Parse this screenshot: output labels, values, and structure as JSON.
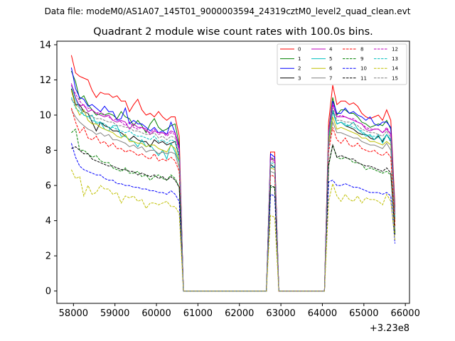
{
  "chart_data": {
    "type": "line",
    "suptitle": "Data file: modeM0/AS1A07_145T01_9000003594_24319cztM0_level2_quad_clean.evt",
    "title": "Quadrant 2 module wise count rates with 100.0s bins.",
    "offset_label": "+3.23e8",
    "xlabel": "",
    "ylabel": "",
    "xlim": [
      57600,
      66100
    ],
    "ylim": [
      -0.7,
      14.2
    ],
    "xticks": [
      58000,
      59000,
      60000,
      61000,
      62000,
      63000,
      64000,
      65000,
      66000
    ],
    "yticks": [
      0,
      2,
      4,
      6,
      8,
      10,
      12,
      14
    ],
    "grid": false,
    "legend_position": "top-right",
    "x": [
      57950,
      58050,
      58150,
      58250,
      58350,
      58450,
      58550,
      58650,
      58750,
      58850,
      58950,
      59050,
      59150,
      59250,
      59350,
      59450,
      59550,
      59650,
      59750,
      59850,
      59950,
      60050,
      60150,
      60250,
      60350,
      60450,
      60550,
      60650,
      60750,
      62650,
      62750,
      62850,
      62950,
      63050,
      64050,
      64150,
      64250,
      64350,
      64450,
      64550,
      64650,
      64750,
      64850,
      64950,
      65050,
      65150,
      65250,
      65350,
      65450,
      65550,
      65650,
      65750
    ],
    "series": [
      {
        "name": "0",
        "color": "#ff0000",
        "dash": "solid",
        "values": [
          13.4,
          12.4,
          12.2,
          12.1,
          12.0,
          11.4,
          11.0,
          11.3,
          11.2,
          11.2,
          11.0,
          11.1,
          10.8,
          10.8,
          10.2,
          10.6,
          10.9,
          10.3,
          10.0,
          10.1,
          9.9,
          10.2,
          9.9,
          9.7,
          9.9,
          9.9,
          8.8,
          0.0,
          0.0,
          0.0,
          7.9,
          7.9,
          0.0,
          0.0,
          0.0,
          9.6,
          11.7,
          10.6,
          10.8,
          10.8,
          10.6,
          10.7,
          10.5,
          10.1,
          9.9,
          9.8,
          9.9,
          10.0,
          9.7,
          10.3,
          9.7,
          4.8
        ]
      },
      {
        "name": "1",
        "color": "#008000",
        "dash": "solid",
        "values": [
          12.5,
          11.9,
          10.9,
          11.1,
          10.6,
          10.3,
          10.0,
          10.1,
          10.0,
          10.1,
          10.0,
          9.8,
          10.2,
          9.9,
          9.8,
          9.4,
          9.7,
          9.4,
          9.0,
          9.5,
          9.8,
          9.3,
          9.1,
          9.2,
          9.4,
          9.5,
          8.3,
          0.0,
          0.0,
          0.0,
          7.5,
          7.5,
          0.0,
          0.0,
          0.0,
          9.1,
          11.0,
          10.0,
          10.3,
          10.3,
          10.1,
          10.1,
          9.9,
          9.6,
          9.5,
          9.3,
          9.4,
          9.5,
          9.4,
          9.7,
          9.2,
          4.5
        ]
      },
      {
        "name": "2",
        "color": "#0000ff",
        "dash": "solid",
        "values": [
          12.7,
          11.5,
          11.0,
          10.9,
          10.5,
          10.6,
          10.4,
          10.2,
          10.5,
          10.2,
          10.2,
          9.7,
          9.8,
          10.4,
          9.5,
          9.7,
          9.5,
          9.5,
          9.3,
          9.1,
          9.3,
          9.0,
          9.1,
          8.9,
          9.6,
          9.0,
          8.2,
          0.0,
          0.0,
          0.0,
          7.8,
          7.6,
          0.0,
          0.0,
          0.0,
          9.0,
          10.8,
          10.1,
          10.1,
          10.4,
          10.1,
          10.2,
          10.0,
          9.9,
          9.7,
          9.9,
          9.5,
          9.4,
          9.6,
          9.6,
          9.3,
          4.4
        ]
      },
      {
        "name": "3",
        "color": "#000000",
        "dash": "solid",
        "values": [
          11.5,
          10.6,
          10.6,
          10.2,
          10.1,
          9.6,
          9.1,
          9.6,
          9.4,
          9.3,
          9.1,
          9.1,
          9.0,
          8.8,
          8.6,
          8.8,
          8.6,
          8.5,
          8.5,
          8.2,
          8.6,
          8.4,
          8.5,
          8.3,
          8.4,
          8.5,
          7.6,
          0.0,
          0.0,
          0.0,
          7.2,
          7.0,
          0.0,
          0.0,
          0.0,
          8.7,
          10.2,
          9.5,
          9.6,
          9.4,
          9.3,
          9.2,
          9.0,
          8.9,
          8.9,
          8.7,
          8.6,
          8.8,
          8.5,
          8.9,
          8.5,
          4.1
        ]
      },
      {
        "name": "4",
        "color": "#bf00bf",
        "dash": "solid",
        "values": [
          11.8,
          11.0,
          10.5,
          10.6,
          10.2,
          10.3,
          10.1,
          10.0,
          9.9,
          10.0,
          9.7,
          9.6,
          9.7,
          9.6,
          9.2,
          9.5,
          9.3,
          9.3,
          9.2,
          8.9,
          9.1,
          9.0,
          9.0,
          8.9,
          9.1,
          9.0,
          8.1,
          0.0,
          0.0,
          0.0,
          7.5,
          7.4,
          0.0,
          0.0,
          0.0,
          9.0,
          10.6,
          9.9,
          9.9,
          9.9,
          9.8,
          9.7,
          9.6,
          9.5,
          9.2,
          9.1,
          9.2,
          9.2,
          9.0,
          9.2,
          8.9,
          4.4
        ]
      },
      {
        "name": "5",
        "color": "#00bfbf",
        "dash": "solid",
        "values": [
          11.7,
          10.9,
          10.4,
          10.0,
          9.9,
          10.0,
          9.5,
          9.6,
          9.2,
          9.1,
          9.4,
          9.4,
          8.8,
          8.8,
          8.6,
          8.5,
          8.2,
          8.6,
          8.2,
          8.3,
          8.0,
          7.7,
          8.0,
          7.5,
          8.4,
          7.9,
          7.3,
          0.0,
          0.0,
          0.0,
          7.0,
          7.1,
          0.0,
          0.0,
          0.0,
          8.6,
          10.3,
          9.5,
          9.6,
          9.4,
          9.4,
          9.6,
          9.2,
          9.0,
          8.8,
          8.9,
          8.6,
          8.9,
          8.4,
          8.9,
          8.6,
          4.2
        ]
      },
      {
        "name": "6",
        "color": "#bfbf00",
        "dash": "solid",
        "values": [
          11.4,
          10.5,
          10.0,
          10.3,
          9.7,
          9.5,
          9.5,
          9.3,
          9.2,
          9.1,
          9.0,
          8.8,
          8.7,
          8.9,
          8.5,
          8.5,
          8.4,
          8.4,
          8.2,
          8.3,
          8.3,
          8.1,
          8.0,
          7.9,
          8.3,
          8.1,
          7.4,
          0.0,
          0.0,
          0.0,
          7.0,
          6.9,
          0.0,
          0.0,
          0.0,
          8.4,
          9.9,
          9.2,
          9.3,
          9.2,
          9.1,
          9.0,
          8.9,
          8.7,
          8.7,
          8.5,
          8.5,
          8.4,
          8.3,
          8.5,
          8.3,
          4.0
        ]
      },
      {
        "name": "7",
        "color": "#808080",
        "dash": "solid",
        "values": [
          10.3,
          9.9,
          9.6,
          9.4,
          9.2,
          9.1,
          8.9,
          9.0,
          8.8,
          8.9,
          8.6,
          8.6,
          8.5,
          8.4,
          8.2,
          8.3,
          8.1,
          8.2,
          7.9,
          8.0,
          8.0,
          7.8,
          7.9,
          7.8,
          7.9,
          7.8,
          7.0,
          0.0,
          0.0,
          0.0,
          6.8,
          6.7,
          0.0,
          0.0,
          0.0,
          8.2,
          9.6,
          9.0,
          9.0,
          8.9,
          8.8,
          8.7,
          8.7,
          8.5,
          8.4,
          8.3,
          8.3,
          8.2,
          8.1,
          8.4,
          8.0,
          3.9
        ]
      },
      {
        "name": "8",
        "color": "#ff0000",
        "dash": "dashed",
        "values": [
          10.4,
          9.6,
          9.0,
          9.3,
          8.7,
          8.6,
          8.8,
          8.4,
          8.5,
          8.2,
          8.4,
          8.1,
          8.1,
          7.9,
          8.0,
          7.9,
          7.7,
          7.8,
          7.6,
          7.5,
          7.8,
          7.4,
          7.5,
          7.4,
          7.6,
          7.4,
          6.8,
          0.0,
          0.0,
          0.0,
          6.6,
          6.5,
          0.0,
          0.0,
          0.0,
          7.9,
          9.3,
          8.6,
          8.4,
          8.7,
          8.3,
          8.2,
          8.4,
          8.1,
          8.0,
          7.9,
          8.0,
          7.8,
          7.7,
          7.9,
          7.6,
          3.7
        ]
      },
      {
        "name": "9",
        "color": "#008000",
        "dash": "dashed",
        "values": [
          9.0,
          9.2,
          8.0,
          8.0,
          7.8,
          7.6,
          7.7,
          7.4,
          7.3,
          7.3,
          7.0,
          6.9,
          6.8,
          7.0,
          6.7,
          6.7,
          6.8,
          6.5,
          6.6,
          6.3,
          6.5,
          6.6,
          6.4,
          6.3,
          6.6,
          6.4,
          5.9,
          0.0,
          0.0,
          0.0,
          5.9,
          5.9,
          0.0,
          0.0,
          0.0,
          7.1,
          8.3,
          7.6,
          7.5,
          7.6,
          7.5,
          7.3,
          7.3,
          7.2,
          6.9,
          7.0,
          6.9,
          6.8,
          6.7,
          6.8,
          6.6,
          3.3
        ]
      },
      {
        "name": "10",
        "color": "#0000ff",
        "dash": "dashed",
        "values": [
          8.4,
          7.6,
          7.1,
          6.9,
          6.8,
          6.7,
          6.6,
          6.6,
          6.4,
          6.3,
          6.3,
          6.1,
          6.1,
          6.0,
          6.0,
          5.9,
          5.9,
          5.8,
          5.8,
          5.7,
          5.7,
          5.6,
          5.6,
          5.5,
          5.7,
          5.5,
          5.1,
          0.0,
          0.0,
          0.0,
          5.5,
          5.4,
          0.0,
          0.0,
          0.0,
          6.2,
          6.3,
          6.0,
          6.0,
          6.1,
          6.0,
          5.9,
          5.9,
          5.8,
          5.7,
          5.6,
          5.6,
          5.6,
          5.5,
          5.6,
          5.4,
          2.7
        ]
      },
      {
        "name": "11",
        "color": "#000000",
        "dash": "dashed",
        "values": [
          8.1,
          8.2,
          8.0,
          7.8,
          7.8,
          7.5,
          7.4,
          7.3,
          7.2,
          7.1,
          7.1,
          7.0,
          6.9,
          6.9,
          6.8,
          6.8,
          6.6,
          6.7,
          6.6,
          6.5,
          6.6,
          6.4,
          6.5,
          6.3,
          6.5,
          6.3,
          5.9,
          0.0,
          0.0,
          0.0,
          6.0,
          5.9,
          0.0,
          0.0,
          0.0,
          7.2,
          8.3,
          7.6,
          7.7,
          7.6,
          7.5,
          7.5,
          7.3,
          7.2,
          7.1,
          7.1,
          7.0,
          6.9,
          6.8,
          7.0,
          6.7,
          3.2
        ]
      },
      {
        "name": "12",
        "color": "#bf00bf",
        "dash": "dashed",
        "values": [
          11.7,
          11.2,
          10.8,
          10.5,
          10.4,
          10.3,
          10.1,
          10.2,
          10.0,
          9.9,
          9.7,
          9.8,
          9.6,
          9.4,
          9.6,
          9.3,
          9.2,
          9.3,
          9.1,
          9.0,
          9.2,
          8.9,
          9.0,
          8.8,
          9.0,
          8.9,
          8.0,
          0.0,
          0.0,
          0.0,
          7.6,
          7.5,
          0.0,
          0.0,
          0.0,
          9.1,
          10.7,
          9.9,
          10.0,
          9.9,
          9.8,
          9.8,
          9.6,
          9.5,
          9.3,
          9.2,
          9.2,
          9.2,
          9.0,
          9.3,
          8.9,
          4.4
        ]
      },
      {
        "name": "13",
        "color": "#00bfbf",
        "dash": "dashed",
        "values": [
          11.0,
          10.4,
          10.2,
          10.0,
          9.9,
          9.7,
          9.6,
          9.6,
          9.5,
          9.3,
          9.3,
          9.2,
          9.1,
          9.0,
          9.1,
          8.9,
          8.8,
          8.8,
          8.7,
          8.6,
          8.8,
          8.5,
          8.6,
          8.4,
          8.6,
          8.5,
          7.6,
          0.0,
          0.0,
          0.0,
          7.3,
          7.2,
          0.0,
          0.0,
          0.0,
          8.7,
          10.2,
          9.5,
          9.6,
          9.5,
          9.4,
          9.3,
          9.2,
          9.1,
          8.9,
          8.8,
          8.8,
          8.7,
          8.6,
          8.9,
          8.5,
          4.2
        ]
      },
      {
        "name": "14",
        "color": "#bfbf00",
        "dash": "dashed",
        "values": [
          6.9,
          6.4,
          6.5,
          5.4,
          6.0,
          5.5,
          5.6,
          6.0,
          5.8,
          5.8,
          5.5,
          5.6,
          5.0,
          5.4,
          5.3,
          5.4,
          5.1,
          5.2,
          4.7,
          5.0,
          5.0,
          4.9,
          5.0,
          5.1,
          4.8,
          4.8,
          4.4,
          0.0,
          0.0,
          0.0,
          4.3,
          4.2,
          0.0,
          0.0,
          0.0,
          5.1,
          6.1,
          5.4,
          5.1,
          5.5,
          5.2,
          5.1,
          5.4,
          5.0,
          5.3,
          5.2,
          5.2,
          5.1,
          4.9,
          5.5,
          5.1,
          2.9
        ]
      },
      {
        "name": "15",
        "color": "#808080",
        "dash": "dashed",
        "values": [
          10.9,
          10.6,
          10.4,
          10.2,
          10.1,
          9.9,
          9.8,
          9.8,
          9.7,
          9.6,
          9.6,
          9.4,
          9.4,
          9.3,
          9.3,
          9.1,
          9.1,
          9.0,
          8.9,
          8.9,
          9.0,
          8.7,
          8.8,
          8.6,
          8.8,
          8.7,
          7.8,
          0.0,
          0.0,
          0.0,
          7.4,
          7.3,
          0.0,
          0.0,
          0.0,
          8.9,
          10.4,
          9.7,
          9.7,
          9.6,
          9.6,
          9.5,
          9.4,
          9.2,
          9.1,
          9.0,
          9.0,
          8.9,
          8.8,
          9.1,
          8.7,
          4.3
        ]
      }
    ]
  }
}
